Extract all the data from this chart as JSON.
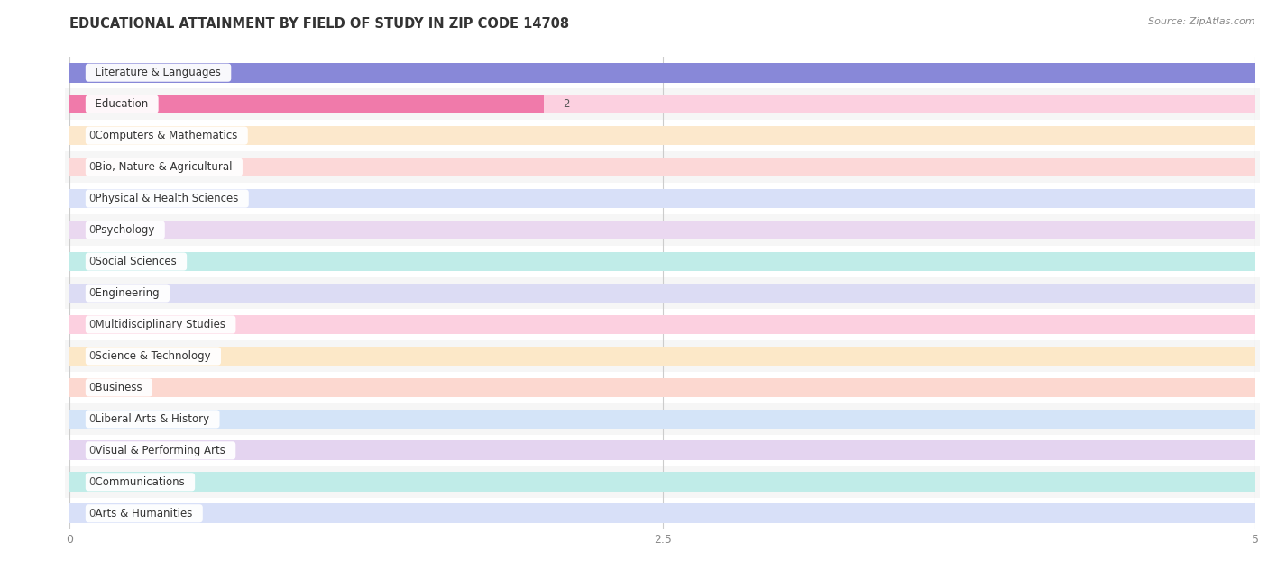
{
  "title": "EDUCATIONAL ATTAINMENT BY FIELD OF STUDY IN ZIP CODE 14708",
  "source": "Source: ZipAtlas.com",
  "categories": [
    "Literature & Languages",
    "Education",
    "Computers & Mathematics",
    "Bio, Nature & Agricultural",
    "Physical & Health Sciences",
    "Psychology",
    "Social Sciences",
    "Engineering",
    "Multidisciplinary Studies",
    "Science & Technology",
    "Business",
    "Liberal Arts & History",
    "Visual & Performing Arts",
    "Communications",
    "Arts & Humanities"
  ],
  "values": [
    5,
    2,
    0,
    0,
    0,
    0,
    0,
    0,
    0,
    0,
    0,
    0,
    0,
    0,
    0
  ],
  "bar_colors": [
    "#8888d8",
    "#f07aaa",
    "#f0b878",
    "#f09898",
    "#8898e8",
    "#c0a8d8",
    "#58c8b8",
    "#a8a8e8",
    "#f888b0",
    "#f0c080",
    "#f0a8a0",
    "#90b8e8",
    "#b898d0",
    "#60c8b8",
    "#a8b8e8"
  ],
  "bg_bar_colors": [
    "#d8d8f0",
    "#fcd0e0",
    "#fce8cc",
    "#fcd8d8",
    "#d8e0f8",
    "#ead8f0",
    "#c0ece8",
    "#dcdcf4",
    "#fcd0e0",
    "#fce8c8",
    "#fcd8d0",
    "#d4e4f8",
    "#e4d4f0",
    "#c0ece8",
    "#d8e0f8"
  ],
  "xlim": [
    0,
    5
  ],
  "xticks": [
    0,
    2.5,
    5
  ],
  "background_color": "#ffffff",
  "row_colors": [
    "#f9f9f9",
    "#f2f2f2"
  ],
  "title_fontsize": 10.5,
  "label_fontsize": 8.5,
  "source_fontsize": 8
}
